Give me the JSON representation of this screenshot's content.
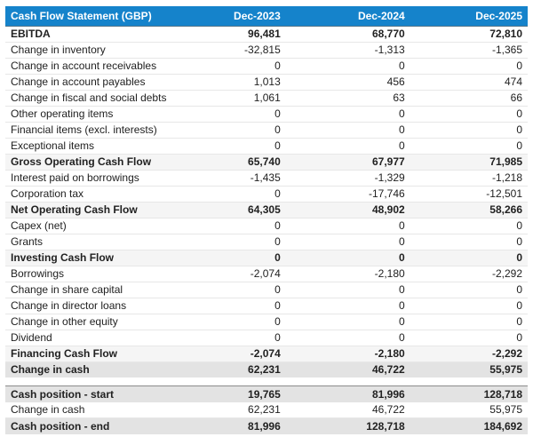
{
  "colors": {
    "header_bg": "#1583cb",
    "header_text": "#ffffff",
    "section_row_bg": "#f5f5f5",
    "summary_row_bg": "#e3e3e3",
    "border_light": "#e7e7e7",
    "border_dark": "#8c8c8c",
    "text": "#212121"
  },
  "header": {
    "label": "Cash Flow Statement (GBP)",
    "columns": [
      "Dec-2023",
      "Dec-2024",
      "Dec-2025"
    ]
  },
  "main_rows": [
    {
      "label": "EBITDA",
      "values": [
        "96,481",
        "68,770",
        "72,810"
      ],
      "style": "bold"
    },
    {
      "label": "Change in inventory",
      "values": [
        "-32,815",
        "-1,313",
        "-1,365"
      ],
      "style": "plain"
    },
    {
      "label": "Change in account receivables",
      "values": [
        "0",
        "0",
        "0"
      ],
      "style": "plain"
    },
    {
      "label": "Change in account payables",
      "values": [
        "1,013",
        "456",
        "474"
      ],
      "style": "plain"
    },
    {
      "label": "Change in fiscal and social debts",
      "values": [
        "1,061",
        "63",
        "66"
      ],
      "style": "plain"
    },
    {
      "label": "Other operating items",
      "values": [
        "0",
        "0",
        "0"
      ],
      "style": "plain"
    },
    {
      "label": "Financial items (excl. interests)",
      "values": [
        "0",
        "0",
        "0"
      ],
      "style": "plain"
    },
    {
      "label": "Exceptional items",
      "values": [
        "0",
        "0",
        "0"
      ],
      "style": "plain"
    },
    {
      "label": "Gross Operating Cash Flow",
      "values": [
        "65,740",
        "67,977",
        "71,985"
      ],
      "style": "section"
    },
    {
      "label": "Interest paid on borrowings",
      "values": [
        "-1,435",
        "-1,329",
        "-1,218"
      ],
      "style": "plain"
    },
    {
      "label": "Corporation tax",
      "values": [
        "0",
        "-17,746",
        "-12,501"
      ],
      "style": "plain"
    },
    {
      "label": "Net Operating Cash Flow",
      "values": [
        "64,305",
        "48,902",
        "58,266"
      ],
      "style": "section"
    },
    {
      "label": "Capex (net)",
      "values": [
        "0",
        "0",
        "0"
      ],
      "style": "plain"
    },
    {
      "label": "Grants",
      "values": [
        "0",
        "0",
        "0"
      ],
      "style": "plain"
    },
    {
      "label": "Investing Cash Flow",
      "values": [
        "0",
        "0",
        "0"
      ],
      "style": "section"
    },
    {
      "label": "Borrowings",
      "values": [
        "-2,074",
        "-2,180",
        "-2,292"
      ],
      "style": "plain"
    },
    {
      "label": "Change in share capital",
      "values": [
        "0",
        "0",
        "0"
      ],
      "style": "plain"
    },
    {
      "label": "Change in director loans",
      "values": [
        "0",
        "0",
        "0"
      ],
      "style": "plain"
    },
    {
      "label": "Change in other equity",
      "values": [
        "0",
        "0",
        "0"
      ],
      "style": "plain"
    },
    {
      "label": "Dividend",
      "values": [
        "0",
        "0",
        "0"
      ],
      "style": "plain"
    },
    {
      "label": "Financing Cash Flow",
      "values": [
        "-2,074",
        "-2,180",
        "-2,292"
      ],
      "style": "section"
    },
    {
      "label": "Change in cash",
      "values": [
        "62,231",
        "46,722",
        "55,975"
      ],
      "style": "summary"
    }
  ],
  "cash_position_rows": [
    {
      "label": "Cash position - start",
      "values": [
        "19,765",
        "81,996",
        "128,718"
      ],
      "style": "summary"
    },
    {
      "label": "Change in cash",
      "values": [
        "62,231",
        "46,722",
        "55,975"
      ],
      "style": "plain"
    },
    {
      "label": "Cash position - end",
      "values": [
        "81,996",
        "128,718",
        "184,692"
      ],
      "style": "summary"
    }
  ],
  "chart_data": {
    "type": "table",
    "title": "Cash Flow Statement (GBP)",
    "columns": [
      "Dec-2023",
      "Dec-2024",
      "Dec-2025"
    ],
    "rows": [
      {
        "label": "EBITDA",
        "values": [
          96481,
          68770,
          72810
        ]
      },
      {
        "label": "Change in inventory",
        "values": [
          -32815,
          -1313,
          -1365
        ]
      },
      {
        "label": "Change in account receivables",
        "values": [
          0,
          0,
          0
        ]
      },
      {
        "label": "Change in account payables",
        "values": [
          1013,
          456,
          474
        ]
      },
      {
        "label": "Change in fiscal and social debts",
        "values": [
          1061,
          63,
          66
        ]
      },
      {
        "label": "Other operating items",
        "values": [
          0,
          0,
          0
        ]
      },
      {
        "label": "Financial items (excl. interests)",
        "values": [
          0,
          0,
          0
        ]
      },
      {
        "label": "Exceptional items",
        "values": [
          0,
          0,
          0
        ]
      },
      {
        "label": "Gross Operating Cash Flow",
        "values": [
          65740,
          67977,
          71985
        ]
      },
      {
        "label": "Interest paid on borrowings",
        "values": [
          -1435,
          -1329,
          -1218
        ]
      },
      {
        "label": "Corporation tax",
        "values": [
          0,
          -17746,
          -12501
        ]
      },
      {
        "label": "Net Operating Cash Flow",
        "values": [
          64305,
          48902,
          58266
        ]
      },
      {
        "label": "Capex (net)",
        "values": [
          0,
          0,
          0
        ]
      },
      {
        "label": "Grants",
        "values": [
          0,
          0,
          0
        ]
      },
      {
        "label": "Investing Cash Flow",
        "values": [
          0,
          0,
          0
        ]
      },
      {
        "label": "Borrowings",
        "values": [
          -2074,
          -2180,
          -2292
        ]
      },
      {
        "label": "Change in share capital",
        "values": [
          0,
          0,
          0
        ]
      },
      {
        "label": "Change in director loans",
        "values": [
          0,
          0,
          0
        ]
      },
      {
        "label": "Change in other equity",
        "values": [
          0,
          0,
          0
        ]
      },
      {
        "label": "Dividend",
        "values": [
          0,
          0,
          0
        ]
      },
      {
        "label": "Financing Cash Flow",
        "values": [
          -2074,
          -2180,
          -2292
        ]
      },
      {
        "label": "Change in cash",
        "values": [
          62231,
          46722,
          55975
        ]
      },
      {
        "label": "Cash position - start",
        "values": [
          19765,
          81996,
          128718
        ]
      },
      {
        "label": "Change in cash",
        "values": [
          62231,
          46722,
          55975
        ]
      },
      {
        "label": "Cash position - end",
        "values": [
          81996,
          128718,
          184692
        ]
      }
    ]
  }
}
